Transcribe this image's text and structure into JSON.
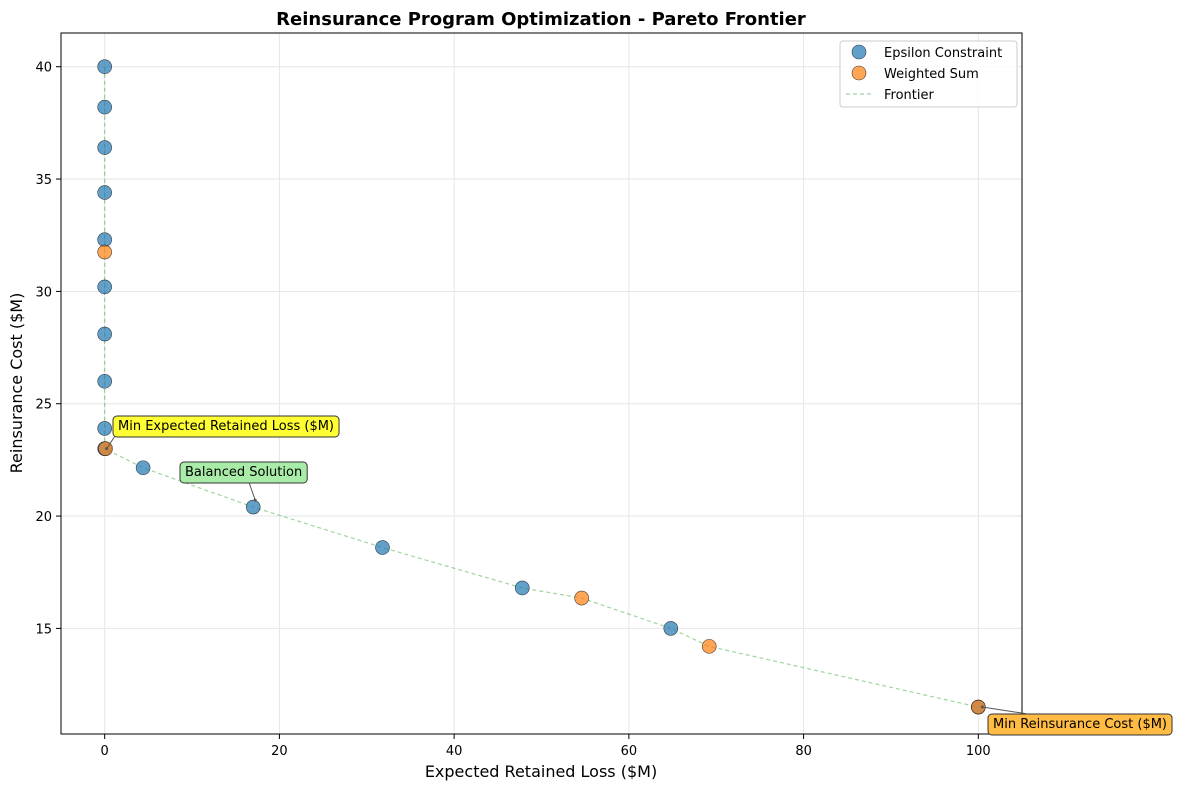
{
  "chart_data": {
    "type": "scatter",
    "title": "Reinsurance Program Optimization - Pareto Frontier",
    "xlabel": "Expected Retained Loss ($M)",
    "ylabel": "Reinsurance Cost ($M)",
    "xlim": [
      -5,
      105
    ],
    "ylim": [
      10.3,
      41.5
    ],
    "xticks": [
      0,
      20,
      40,
      60,
      80,
      100
    ],
    "yticks": [
      15,
      20,
      25,
      30,
      35,
      40
    ],
    "grid": true,
    "legend_position": "upper right",
    "series": [
      {
        "name": "Epsilon Constraint",
        "color": "#1f77b4",
        "points": [
          [
            0,
            40.0
          ],
          [
            0,
            38.2
          ],
          [
            0,
            36.4
          ],
          [
            0,
            34.4
          ],
          [
            0,
            32.3
          ],
          [
            0,
            30.2
          ],
          [
            0,
            28.1
          ],
          [
            0,
            26.0
          ],
          [
            0,
            23.9
          ],
          [
            0,
            23.0
          ],
          [
            4.4,
            22.15
          ],
          [
            17.0,
            20.4
          ],
          [
            31.8,
            18.6
          ],
          [
            47.8,
            16.8
          ],
          [
            64.8,
            15.0
          ],
          [
            100.0,
            11.5
          ]
        ]
      },
      {
        "name": "Weighted Sum",
        "color": "#ff7f0e",
        "points": [
          [
            0,
            31.75
          ],
          [
            0.1,
            23.0
          ],
          [
            54.6,
            16.35
          ],
          [
            69.2,
            14.2
          ],
          [
            100.0,
            11.5
          ]
        ]
      }
    ],
    "frontier": {
      "name": "Frontier",
      "color": "#2ca02c",
      "points": [
        [
          0,
          40.0
        ],
        [
          0,
          38.2
        ],
        [
          0,
          36.4
        ],
        [
          0,
          34.4
        ],
        [
          0,
          32.3
        ],
        [
          0,
          31.75
        ],
        [
          0,
          30.2
        ],
        [
          0,
          28.1
        ],
        [
          0,
          26.0
        ],
        [
          0,
          23.9
        ],
        [
          0,
          23.0
        ],
        [
          4.4,
          22.15
        ],
        [
          17.0,
          20.4
        ],
        [
          31.8,
          18.6
        ],
        [
          47.8,
          16.8
        ],
        [
          54.6,
          16.35
        ],
        [
          64.8,
          15.0
        ],
        [
          69.2,
          14.2
        ],
        [
          100.0,
          11.5
        ]
      ]
    },
    "annotations": [
      {
        "text": "Min Expected Retained Loss ($M)",
        "target": [
          0,
          23.0
        ],
        "color": "#ffff33",
        "anchor": "upper"
      },
      {
        "text": "Balanced Solution",
        "target": [
          17.0,
          20.4
        ],
        "color": "#a8eca8",
        "anchor": "upper"
      },
      {
        "text": "Min Reinsurance Cost ($M)",
        "target": [
          100.0,
          11.5
        ],
        "color": "#ffbb44",
        "anchor": "lower"
      }
    ]
  }
}
